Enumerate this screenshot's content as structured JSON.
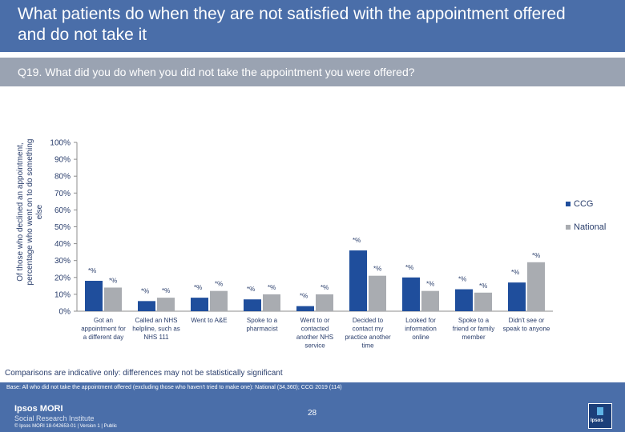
{
  "header": {
    "title": "What patients do when they are not satisfied with the appointment offered and do not take it"
  },
  "question": {
    "text": "Q19. What did you do when you did not take the appointment you were offered?"
  },
  "chart_data": {
    "type": "bar",
    "ylabel": "Of those who declined an appointment, percentage who went on to do something else",
    "ylim": [
      0,
      100
    ],
    "yticks": [
      "0%",
      "10%",
      "20%",
      "30%",
      "40%",
      "50%",
      "60%",
      "70%",
      "80%",
      "90%",
      "100%"
    ],
    "categories": [
      [
        "Got an",
        "appointment for",
        "a different day"
      ],
      [
        "Called an NHS",
        "helpline, such as",
        "NHS 111"
      ],
      [
        "Went to A&E"
      ],
      [
        "Spoke to a",
        "pharmacist"
      ],
      [
        "Went to or",
        "contacted",
        "another NHS",
        "service"
      ],
      [
        "Decided to",
        "contact my",
        "practice another",
        "time"
      ],
      [
        "Looked for",
        "information",
        "online"
      ],
      [
        "Spoke to a",
        "friend or family",
        "member"
      ],
      [
        "Didn't see or",
        "speak to anyone"
      ]
    ],
    "series": [
      {
        "name": "CCG",
        "color": "#1f4e9c",
        "values": [
          18,
          6,
          8,
          7,
          3,
          36,
          20,
          13,
          17
        ],
        "labels": [
          "*%",
          "*%",
          "*%",
          "*%",
          "*%",
          "*%",
          "*%",
          "*%",
          "*%"
        ]
      },
      {
        "name": "National",
        "color": "#a9acb1",
        "values": [
          14,
          8,
          12,
          10,
          10,
          21,
          12,
          11,
          29
        ],
        "labels": [
          "*%",
          "*%",
          "*%",
          "*%",
          "*%",
          "*%",
          "*%",
          "*%",
          "*%"
        ]
      }
    ],
    "legend_position": "right"
  },
  "legend": {
    "ccg": "CCG",
    "national": "National"
  },
  "footnote": "Comparisons are indicative only: differences may not be statistically significant",
  "footer": {
    "base": "Base: All who did not take the appointment offered (excluding those who haven't tried to make one): National (34,360); CCG 2019 (114)",
    "page_number": "28",
    "logo_name": "Ipsos MORI",
    "logo_sub": "Social Research Institute",
    "copyright": "© Ipsos MORI   18-042653-01 | Version 1 | Public",
    "corner_logo": "Ipsos"
  }
}
